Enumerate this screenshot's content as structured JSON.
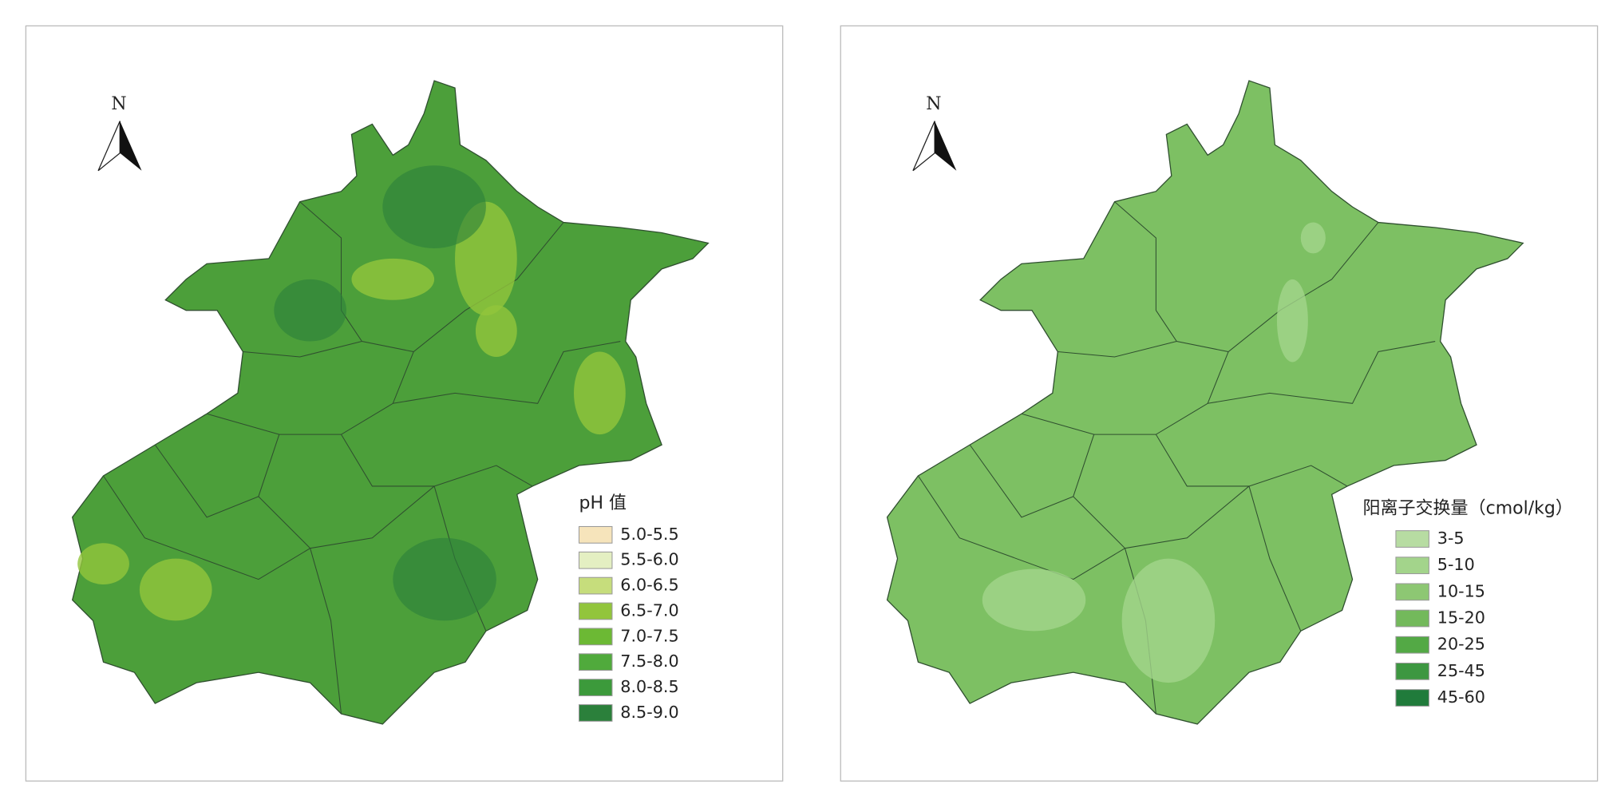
{
  "maps": [
    {
      "north_label": "N",
      "map_color": "#4c9f3a",
      "legend": {
        "title": "pH 值",
        "items": [
          {
            "label": "5.0-5.5",
            "color": "#f6e4bb"
          },
          {
            "label": "5.5-6.0",
            "color": "#e4efc2"
          },
          {
            "label": "6.0-6.5",
            "color": "#c6dd7c"
          },
          {
            "label": "6.5-7.0",
            "color": "#92c53c"
          },
          {
            "label": "7.0-7.5",
            "color": "#6cb934"
          },
          {
            "label": "7.5-8.0",
            "color": "#50aa3c"
          },
          {
            "label": "8.0-8.5",
            "color": "#3c9a3b"
          },
          {
            "label": "8.5-9.0",
            "color": "#2b803b"
          }
        ]
      }
    },
    {
      "north_label": "N",
      "map_color": "#7dc063",
      "legend": {
        "title": "阳离子交换量（cmol/kg）",
        "items": [
          {
            "label": "3-5",
            "color": "#b7dca2"
          },
          {
            "label": "5-10",
            "color": "#a3d48b"
          },
          {
            "label": "10-15",
            "color": "#8dc773"
          },
          {
            "label": "15-20",
            "color": "#73b95b"
          },
          {
            "label": "20-25",
            "color": "#53a945"
          },
          {
            "label": "25-45",
            "color": "#3d9741"
          },
          {
            "label": "45-60",
            "color": "#207b3b"
          }
        ]
      }
    }
  ]
}
